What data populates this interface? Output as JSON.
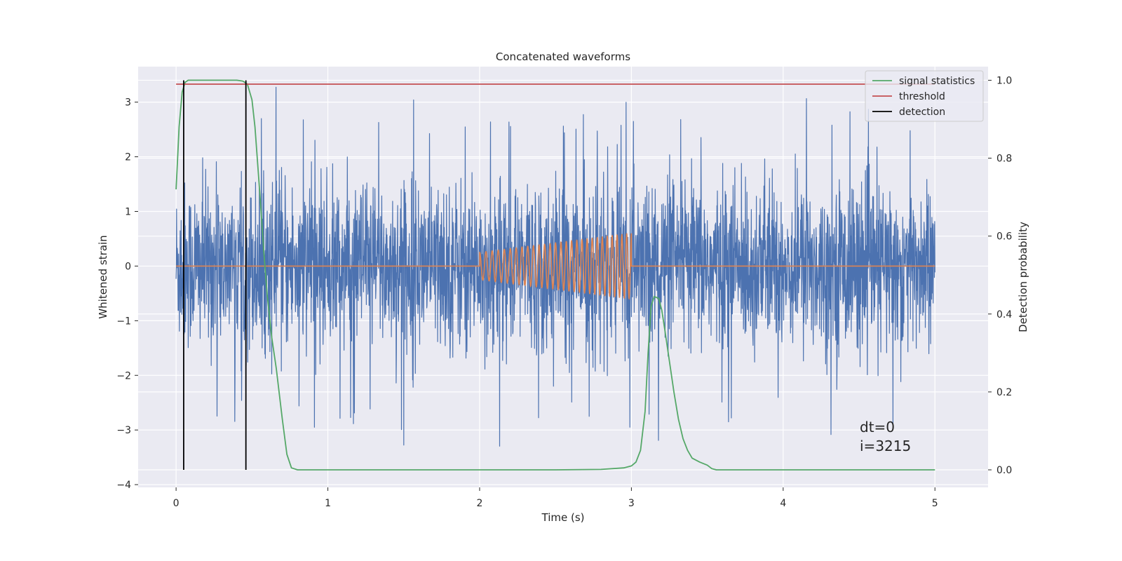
{
  "chart_data": {
    "type": "line",
    "title": "Concatenated waveforms",
    "xlabel": "Time (s)",
    "ylabel": "Whitened strain",
    "y2label": "Detection probability",
    "xlim": [
      -0.25,
      5.35
    ],
    "ylim": [
      -4.05,
      3.65
    ],
    "y2lim": [
      -0.045,
      1.035
    ],
    "xticks": [
      0,
      1,
      2,
      3,
      4,
      5
    ],
    "yticks": [
      -4,
      -3,
      -2,
      -1,
      0,
      1,
      2,
      3
    ],
    "y2ticks": [
      0.0,
      0.2,
      0.4,
      0.6,
      0.8,
      1.0
    ],
    "xtick_labels": [
      "0",
      "1",
      "2",
      "3",
      "4",
      "5"
    ],
    "ytick_labels": [
      "−4",
      "−3",
      "−2",
      "−1",
      "0",
      "1",
      "2",
      "3"
    ],
    "y2tick_labels": [
      "0.0",
      "0.2",
      "0.4",
      "0.6",
      "0.8",
      "1.0"
    ],
    "grid": true,
    "legend_position": "top-right",
    "colors": {
      "strain": "#4c72b0",
      "injection": "#dd8452",
      "signal_statistics": "#55a868",
      "threshold": "#c44e52",
      "detection": "#000000",
      "plot_background": "#eaeaf2",
      "grid": "#ffffff"
    },
    "series": [
      {
        "axis": "left",
        "color": "#4c72b0",
        "kind": "noise",
        "x_range": [
          0,
          5
        ],
        "typical_amplitude": 1.2,
        "extreme_range": [
          -3.7,
          3.3
        ]
      },
      {
        "axis": "left",
        "color": "#dd8452",
        "kind": "chirp",
        "x": [
          0,
          2.0,
          3.0,
          5.0
        ],
        "note_start_amplitude": 0.25,
        "end_amplitude": 0.6
      },
      {
        "name": "signal statistics",
        "axis": "right",
        "color": "#55a868",
        "x": [
          0.0,
          0.01,
          0.02,
          0.04,
          0.06,
          0.08,
          0.1,
          0.15,
          0.2,
          0.3,
          0.4,
          0.44,
          0.47,
          0.5,
          0.52,
          0.55,
          0.58,
          0.6,
          0.63,
          0.66,
          0.7,
          0.73,
          0.76,
          0.8,
          1.0,
          1.5,
          2.0,
          2.5,
          2.8,
          2.95,
          3.0,
          3.03,
          3.06,
          3.09,
          3.11,
          3.13,
          3.15,
          3.18,
          3.2,
          3.22,
          3.25,
          3.28,
          3.31,
          3.34,
          3.37,
          3.4,
          3.45,
          3.5,
          3.53,
          3.56,
          3.6,
          4.0,
          4.5,
          5.0
        ],
        "y": [
          0.72,
          0.8,
          0.88,
          0.97,
          0.995,
          1.0,
          1.0,
          1.0,
          1.0,
          1.0,
          1.0,
          0.998,
          0.99,
          0.95,
          0.88,
          0.72,
          0.55,
          0.45,
          0.34,
          0.26,
          0.13,
          0.04,
          0.005,
          0.0,
          0.0,
          0.0,
          0.0,
          0.0,
          0.001,
          0.005,
          0.01,
          0.02,
          0.05,
          0.15,
          0.3,
          0.42,
          0.445,
          0.44,
          0.41,
          0.36,
          0.28,
          0.2,
          0.13,
          0.08,
          0.05,
          0.03,
          0.02,
          0.012,
          0.003,
          0.0,
          0.0,
          0.0,
          0.0,
          0.0
        ]
      },
      {
        "name": "threshold",
        "axis": "right",
        "color": "#c44e52",
        "x": [
          0,
          5
        ],
        "y": [
          0.99,
          0.99
        ]
      },
      {
        "name": "detection",
        "axis": "right",
        "color": "#000000",
        "kind": "vlines",
        "x": [
          0.05,
          0.46
        ],
        "y_range": [
          0.0,
          1.0
        ]
      }
    ],
    "annotations": [
      "dt=0",
      "i=3215"
    ]
  }
}
